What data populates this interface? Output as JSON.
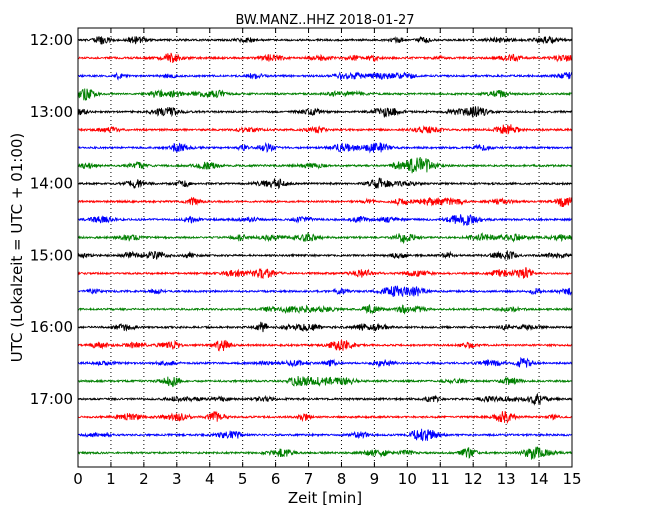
{
  "chart_data": {
    "type": "line",
    "title": "BW.MANZ..HHZ 2018-01-27",
    "xlabel": "Zeit  [min]",
    "ylabel": "UTC (Lokalzeit = UTC + 01:00)",
    "xlim": [
      0,
      15
    ],
    "x_ticks": [
      "0",
      "1",
      "2",
      "3",
      "4",
      "5",
      "6",
      "7",
      "8",
      "9",
      "10",
      "11",
      "12",
      "13",
      "14",
      "15"
    ],
    "y_tick_labels": [
      "12:00",
      "13:00",
      "14:00",
      "15:00",
      "16:00",
      "17:00"
    ],
    "trace_start": "12:00",
    "trace_interval_minutes": 15,
    "trace_count": 24,
    "trace_colors": [
      "#000000",
      "#ff0000",
      "#0000ff",
      "#008000"
    ],
    "grid": "vertical dotted",
    "series": [
      {
        "values": []
      }
    ]
  }
}
